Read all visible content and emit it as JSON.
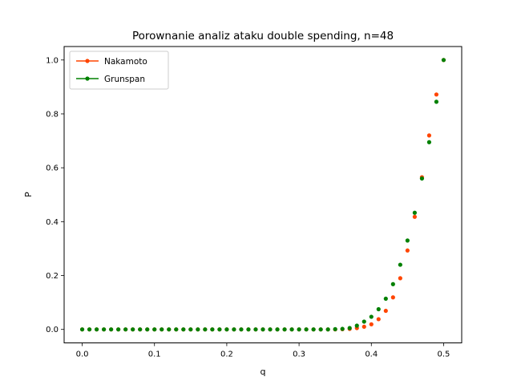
{
  "chart_data": {
    "type": "scatter",
    "title": "Porownanie analiz ataku double spending, n=48",
    "xlabel": "q",
    "ylabel": "P",
    "xlim": [
      -0.025,
      0.525
    ],
    "ylim": [
      -0.05,
      1.05
    ],
    "xticks": [
      "0.0",
      "0.1",
      "0.2",
      "0.3",
      "0.4",
      "0.5"
    ],
    "yticks": [
      "0.0",
      "0.2",
      "0.4",
      "0.6",
      "0.8",
      "1.0"
    ],
    "grid": false,
    "legend_position": "top-left",
    "x": [
      0.0,
      0.01,
      0.02,
      0.03,
      0.04,
      0.05,
      0.06,
      0.07,
      0.08,
      0.09,
      0.1,
      0.11,
      0.12,
      0.13,
      0.14,
      0.15,
      0.16,
      0.17,
      0.18,
      0.19,
      0.2,
      0.21,
      0.22,
      0.23,
      0.24,
      0.25,
      0.26,
      0.27,
      0.28,
      0.29,
      0.3,
      0.31,
      0.32,
      0.33,
      0.34,
      0.35,
      0.36,
      0.37,
      0.38,
      0.39,
      0.4,
      0.41,
      0.42,
      0.43,
      0.44,
      0.45,
      0.46,
      0.47,
      0.48,
      0.49,
      0.5
    ],
    "series": [
      {
        "name": "Nakamoto",
        "color": "#ff4500",
        "values": [
          0,
          0,
          0,
          0,
          0,
          0,
          0,
          0,
          0,
          0,
          0,
          0,
          0,
          0,
          0,
          0,
          0,
          0,
          0,
          0,
          0,
          0,
          0,
          0,
          0,
          0,
          0,
          0,
          0,
          0,
          0,
          0,
          0,
          0,
          0,
          0,
          0.001,
          0.002,
          0.005,
          0.01,
          0.019,
          0.038,
          0.069,
          0.119,
          0.19,
          0.293,
          0.418,
          0.565,
          0.72,
          0.872,
          1.0
        ]
      },
      {
        "name": "Grunspan",
        "color": "#008000",
        "values": [
          0,
          0,
          0,
          0,
          0,
          0,
          0,
          0,
          0,
          0,
          0,
          0,
          0,
          0,
          0,
          0,
          0,
          0,
          0,
          0,
          0,
          0,
          0,
          0,
          0,
          0,
          0,
          0,
          0,
          0,
          0,
          0,
          0,
          0,
          0,
          0.001,
          0.002,
          0.005,
          0.014,
          0.029,
          0.047,
          0.075,
          0.114,
          0.168,
          0.24,
          0.33,
          0.433,
          0.56,
          0.695,
          0.845,
          1.0
        ]
      }
    ]
  }
}
